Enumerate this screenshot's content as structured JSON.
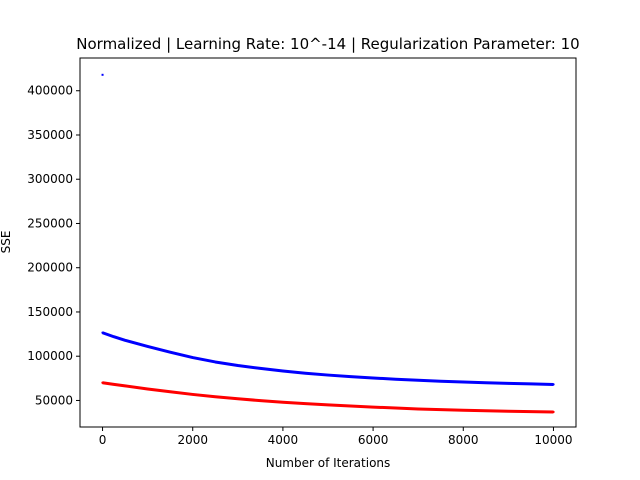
{
  "chart_data": {
    "type": "scatter",
    "title": "Normalized | Learning Rate: 10^-14 | Regularization Parameter: 10",
    "xlabel": "Number of Iterations",
    "ylabel": "SSE",
    "xlim": [
      -500,
      10500
    ],
    "ylim": [
      20000,
      437000
    ],
    "xticks": [
      0,
      2000,
      4000,
      6000,
      8000,
      10000
    ],
    "yticks": [
      50000,
      100000,
      150000,
      200000,
      250000,
      300000,
      350000,
      400000
    ],
    "xtick_labels": [
      "0",
      "2000",
      "4000",
      "6000",
      "8000",
      "10000"
    ],
    "ytick_labels": [
      "50000",
      "100000",
      "150000",
      "200000",
      "250000",
      "300000",
      "350000",
      "400000"
    ],
    "grid": false,
    "series": [
      {
        "color": "#0000ff",
        "x": [
          0,
          1,
          250,
          500,
          1000,
          1500,
          2000,
          2500,
          3000,
          3500,
          4000,
          4500,
          5000,
          5500,
          6000,
          6500,
          7000,
          7500,
          8000,
          8500,
          9000,
          9500,
          10000
        ],
        "y": [
          418000,
          126500,
          122000,
          118000,
          111000,
          104500,
          98500,
          93500,
          89500,
          86200,
          83300,
          80800,
          78700,
          76900,
          75400,
          74000,
          72800,
          71700,
          70800,
          70000,
          69300,
          68700,
          68100
        ]
      },
      {
        "color": "#ff0000",
        "x": [
          0,
          250,
          500,
          1000,
          1500,
          2000,
          2500,
          3000,
          3500,
          4000,
          4500,
          5000,
          5500,
          6000,
          6500,
          7000,
          7500,
          8000,
          8500,
          9000,
          9500,
          10000
        ],
        "y": [
          70000,
          68200,
          66500,
          62900,
          59800,
          56800,
          54200,
          51900,
          49800,
          48000,
          46400,
          45000,
          43700,
          42500,
          41400,
          40400,
          39600,
          38900,
          38300,
          37800,
          37400,
          37000
        ]
      }
    ]
  }
}
